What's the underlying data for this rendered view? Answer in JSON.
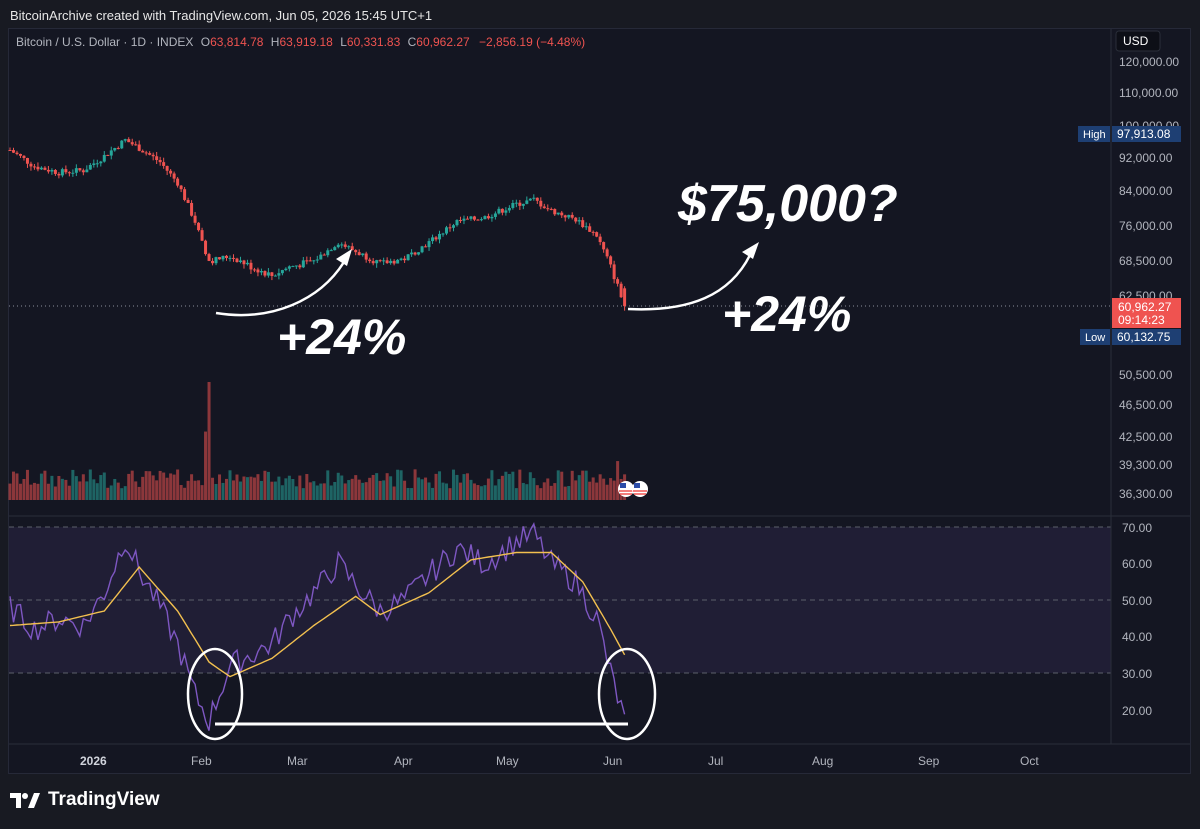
{
  "header": {
    "attribution": "BitcoinArchive created with TradingView.com, Jun 05, 2026 15:45 UTC+1"
  },
  "legend": {
    "symbol": "Bitcoin / U.S. Dollar · 1D · INDEX",
    "o_label": "O",
    "o_value": "63,814.78",
    "h_label": "H",
    "h_value": "63,919.18",
    "l_label": "L",
    "l_value": "60,331.83",
    "c_label": "C",
    "c_value": "60,962.27",
    "change": "−2,856.19 (−4.48%)"
  },
  "currency": "USD",
  "price_axis": {
    "ticks": [
      "120,000.00",
      "110,000.00",
      "100,000.00",
      "92,000.00",
      "84,000.00",
      "76,000.00",
      "68,500.00",
      "62,500.00",
      "50,500.00",
      "46,500.00",
      "42,500.00",
      "39,300.00",
      "36,300.00"
    ],
    "high_label": "High",
    "high_value": "97,913.08",
    "low_label": "Low",
    "low_value": "60,132.75",
    "last_price": "60,962.27",
    "countdown": "09:14:23"
  },
  "rsi_axis": {
    "ticks": [
      "70.00",
      "60.00",
      "50.00",
      "40.00",
      "30.00",
      "20.00"
    ]
  },
  "time_axis": {
    "labels": [
      "2026",
      "Feb",
      "Mar",
      "Apr",
      "May",
      "Jun",
      "Jul",
      "Aug",
      "Sep",
      "Oct"
    ]
  },
  "annotations": {
    "target": "$75,000?",
    "gain_left": "+24%",
    "gain_right": "+24%"
  },
  "footer": {
    "brand": "TradingView"
  },
  "colors": {
    "up": "#26a69a",
    "down": "#ef5350",
    "rsi": "#7e57c2",
    "rsi_ma": "#f2c04f",
    "badge_blue": "#1e3f73",
    "badge_red": "#ef5350",
    "text": "#d1d4dc",
    "white": "#ffffff"
  },
  "chart_data": [
    {
      "type": "candlestick",
      "title": "Bitcoin / U.S. Dollar · 1D · INDEX",
      "ylim": [
        36300,
        120000
      ],
      "x_range": [
        "2025-12-11",
        "2026-10-22"
      ],
      "anchors": [
        {
          "date": "2025-12-11",
          "close": 94000
        },
        {
          "date": "2025-12-18",
          "close": 90000
        },
        {
          "date": "2025-12-25",
          "close": 88500
        },
        {
          "date": "2026-01-01",
          "close": 89000
        },
        {
          "date": "2026-01-07",
          "close": 92500
        },
        {
          "date": "2026-01-13",
          "close": 96500
        },
        {
          "date": "2026-01-17",
          "close": 94500
        },
        {
          "date": "2026-01-23",
          "close": 91000
        },
        {
          "date": "2026-01-28",
          "close": 86000
        },
        {
          "date": "2026-02-02",
          "close": 77000
        },
        {
          "date": "2026-02-05",
          "close": 70000
        },
        {
          "date": "2026-02-06",
          "close": 68500
        },
        {
          "date": "2026-02-12",
          "close": 69500
        },
        {
          "date": "2026-02-18",
          "close": 67500
        },
        {
          "date": "2026-02-24",
          "close": 66000
        },
        {
          "date": "2026-03-01",
          "close": 67500
        },
        {
          "date": "2026-03-08",
          "close": 68500
        },
        {
          "date": "2026-03-15",
          "close": 72500
        },
        {
          "date": "2026-03-20",
          "close": 70500
        },
        {
          "date": "2026-03-27",
          "close": 68000
        },
        {
          "date": "2026-04-03",
          "close": 69000
        },
        {
          "date": "2026-04-10",
          "close": 72500
        },
        {
          "date": "2026-04-18",
          "close": 77000
        },
        {
          "date": "2026-04-26",
          "close": 78000
        },
        {
          "date": "2026-05-05",
          "close": 81000
        },
        {
          "date": "2026-05-10",
          "close": 82000
        },
        {
          "date": "2026-05-15",
          "close": 79500
        },
        {
          "date": "2026-05-22",
          "close": 77500
        },
        {
          "date": "2026-05-28",
          "close": 74000
        },
        {
          "date": "2026-06-01",
          "close": 67500
        },
        {
          "date": "2026-06-05",
          "close": 60962
        }
      ],
      "ohlc_last": {
        "open": 63814.78,
        "high": 63919.18,
        "low": 60331.83,
        "close": 60962.27
      },
      "period_high": 97913.08,
      "period_low": 60132.75
    },
    {
      "type": "bar",
      "title": "Volume",
      "spikes": [
        {
          "date": "2026-02-06",
          "value": 1.0
        },
        {
          "date": "2026-02-05",
          "value": 0.58
        },
        {
          "date": "2026-06-03",
          "value": 0.33
        }
      ],
      "baseline": 0.1
    },
    {
      "type": "line",
      "title": "RSI",
      "ylim": [
        10,
        75
      ],
      "levels": [
        70,
        50,
        30
      ],
      "series": [
        {
          "name": "RSI",
          "anchors": [
            {
              "date": "2025-12-11",
              "value": 48
            },
            {
              "date": "2025-12-18",
              "value": 42
            },
            {
              "date": "2025-12-25",
              "value": 45
            },
            {
              "date": "2026-01-01",
              "value": 43
            },
            {
              "date": "2026-01-07",
              "value": 52
            },
            {
              "date": "2026-01-13",
              "value": 67
            },
            {
              "date": "2026-01-17",
              "value": 58
            },
            {
              "date": "2026-01-23",
              "value": 48
            },
            {
              "date": "2026-01-28",
              "value": 38
            },
            {
              "date": "2026-02-02",
              "value": 24
            },
            {
              "date": "2026-02-06",
              "value": 17
            },
            {
              "date": "2026-02-12",
              "value": 32
            },
            {
              "date": "2026-02-18",
              "value": 35
            },
            {
              "date": "2026-02-24",
              "value": 38
            },
            {
              "date": "2026-03-01",
              "value": 45
            },
            {
              "date": "2026-03-08",
              "value": 52
            },
            {
              "date": "2026-03-15",
              "value": 60
            },
            {
              "date": "2026-03-20",
              "value": 54
            },
            {
              "date": "2026-03-27",
              "value": 47
            },
            {
              "date": "2026-04-03",
              "value": 50
            },
            {
              "date": "2026-04-10",
              "value": 57
            },
            {
              "date": "2026-04-18",
              "value": 64
            },
            {
              "date": "2026-04-26",
              "value": 60
            },
            {
              "date": "2026-05-05",
              "value": 66
            },
            {
              "date": "2026-05-10",
              "value": 68
            },
            {
              "date": "2026-05-15",
              "value": 60
            },
            {
              "date": "2026-05-22",
              "value": 55
            },
            {
              "date": "2026-05-28",
              "value": 45
            },
            {
              "date": "2026-06-01",
              "value": 30
            },
            {
              "date": "2026-06-05",
              "value": 17
            }
          ]
        },
        {
          "name": "RSI-based MA",
          "anchors": [
            {
              "date": "2025-12-11",
              "value": 43
            },
            {
              "date": "2025-12-25",
              "value": 44
            },
            {
              "date": "2026-01-07",
              "value": 47
            },
            {
              "date": "2026-01-17",
              "value": 59
            },
            {
              "date": "2026-01-28",
              "value": 47
            },
            {
              "date": "2026-02-06",
              "value": 33
            },
            {
              "date": "2026-02-12",
              "value": 29
            },
            {
              "date": "2026-02-24",
              "value": 34
            },
            {
              "date": "2026-03-08",
              "value": 43
            },
            {
              "date": "2026-03-20",
              "value": 51
            },
            {
              "date": "2026-03-27",
              "value": 46
            },
            {
              "date": "2026-04-10",
              "value": 52
            },
            {
              "date": "2026-04-22",
              "value": 61
            },
            {
              "date": "2026-05-05",
              "value": 63
            },
            {
              "date": "2026-05-15",
              "value": 63
            },
            {
              "date": "2026-05-24",
              "value": 55
            },
            {
              "date": "2026-06-01",
              "value": 42
            },
            {
              "date": "2026-06-05",
              "value": 35
            }
          ]
        }
      ]
    }
  ]
}
